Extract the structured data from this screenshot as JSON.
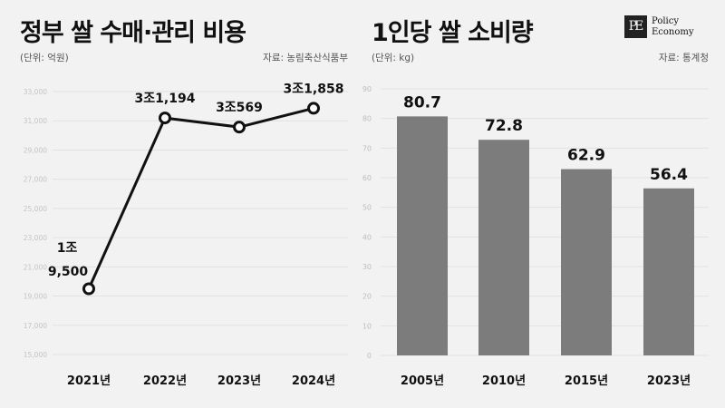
{
  "left_panel": {
    "title": "정부 쌀 수매·관리 비용",
    "unit": "(단위: 억원)",
    "source": "자료: 농림축산식품부"
  },
  "right_panel": {
    "title": "1인당 쌀 소비량",
    "unit": "(단위: kg)",
    "source": "자료: 통계청",
    "logo_mark": "PE",
    "logo_line1": "Policy",
    "logo_line2": "Economy"
  },
  "chart_data": [
    {
      "type": "line",
      "title": "정부 쌀 수매·관리 비용",
      "unit": "억원",
      "categories": [
        "2021년",
        "2022년",
        "2023년",
        "2024년"
      ],
      "values": [
        19500,
        31194,
        30569,
        31858
      ],
      "data_labels": [
        [
          "1조",
          "9,500"
        ],
        [
          "3조1,194"
        ],
        [
          "3조569"
        ],
        [
          "3조1,858"
        ]
      ],
      "ylim": [
        15000,
        33000
      ],
      "yticks": [
        15000,
        17000,
        19000,
        21000,
        23000,
        25000,
        27000,
        29000,
        31000,
        33000
      ],
      "ytick_labels": [
        "15,000",
        "17,000",
        "19,000",
        "21,000",
        "23,000",
        "25,000",
        "27,000",
        "29,000",
        "31,000",
        "33,000"
      ],
      "colors": {
        "line": "#111111",
        "marker_fill": "#ffffff",
        "grid": "#e2e2e2",
        "tick": "#c4c4c4"
      },
      "grid": true
    },
    {
      "type": "bar",
      "title": "1인당 쌀 소비량",
      "unit": "kg",
      "categories": [
        "2005년",
        "2010년",
        "2015년",
        "2023년"
      ],
      "values": [
        80.7,
        72.8,
        62.9,
        56.4
      ],
      "data_labels": [
        "80.7",
        "72.8",
        "62.9",
        "56.4"
      ],
      "ylim": [
        0,
        90
      ],
      "yticks": [
        0,
        10,
        20,
        30,
        40,
        50,
        60,
        70,
        80,
        90
      ],
      "ytick_labels": [
        "0",
        "10",
        "20",
        "30",
        "40",
        "50",
        "60",
        "70",
        "80",
        "90"
      ],
      "colors": {
        "bar": "#7c7c7c",
        "grid": "#e2e2e2",
        "tick": "#bdbdbd"
      },
      "grid": true
    }
  ]
}
